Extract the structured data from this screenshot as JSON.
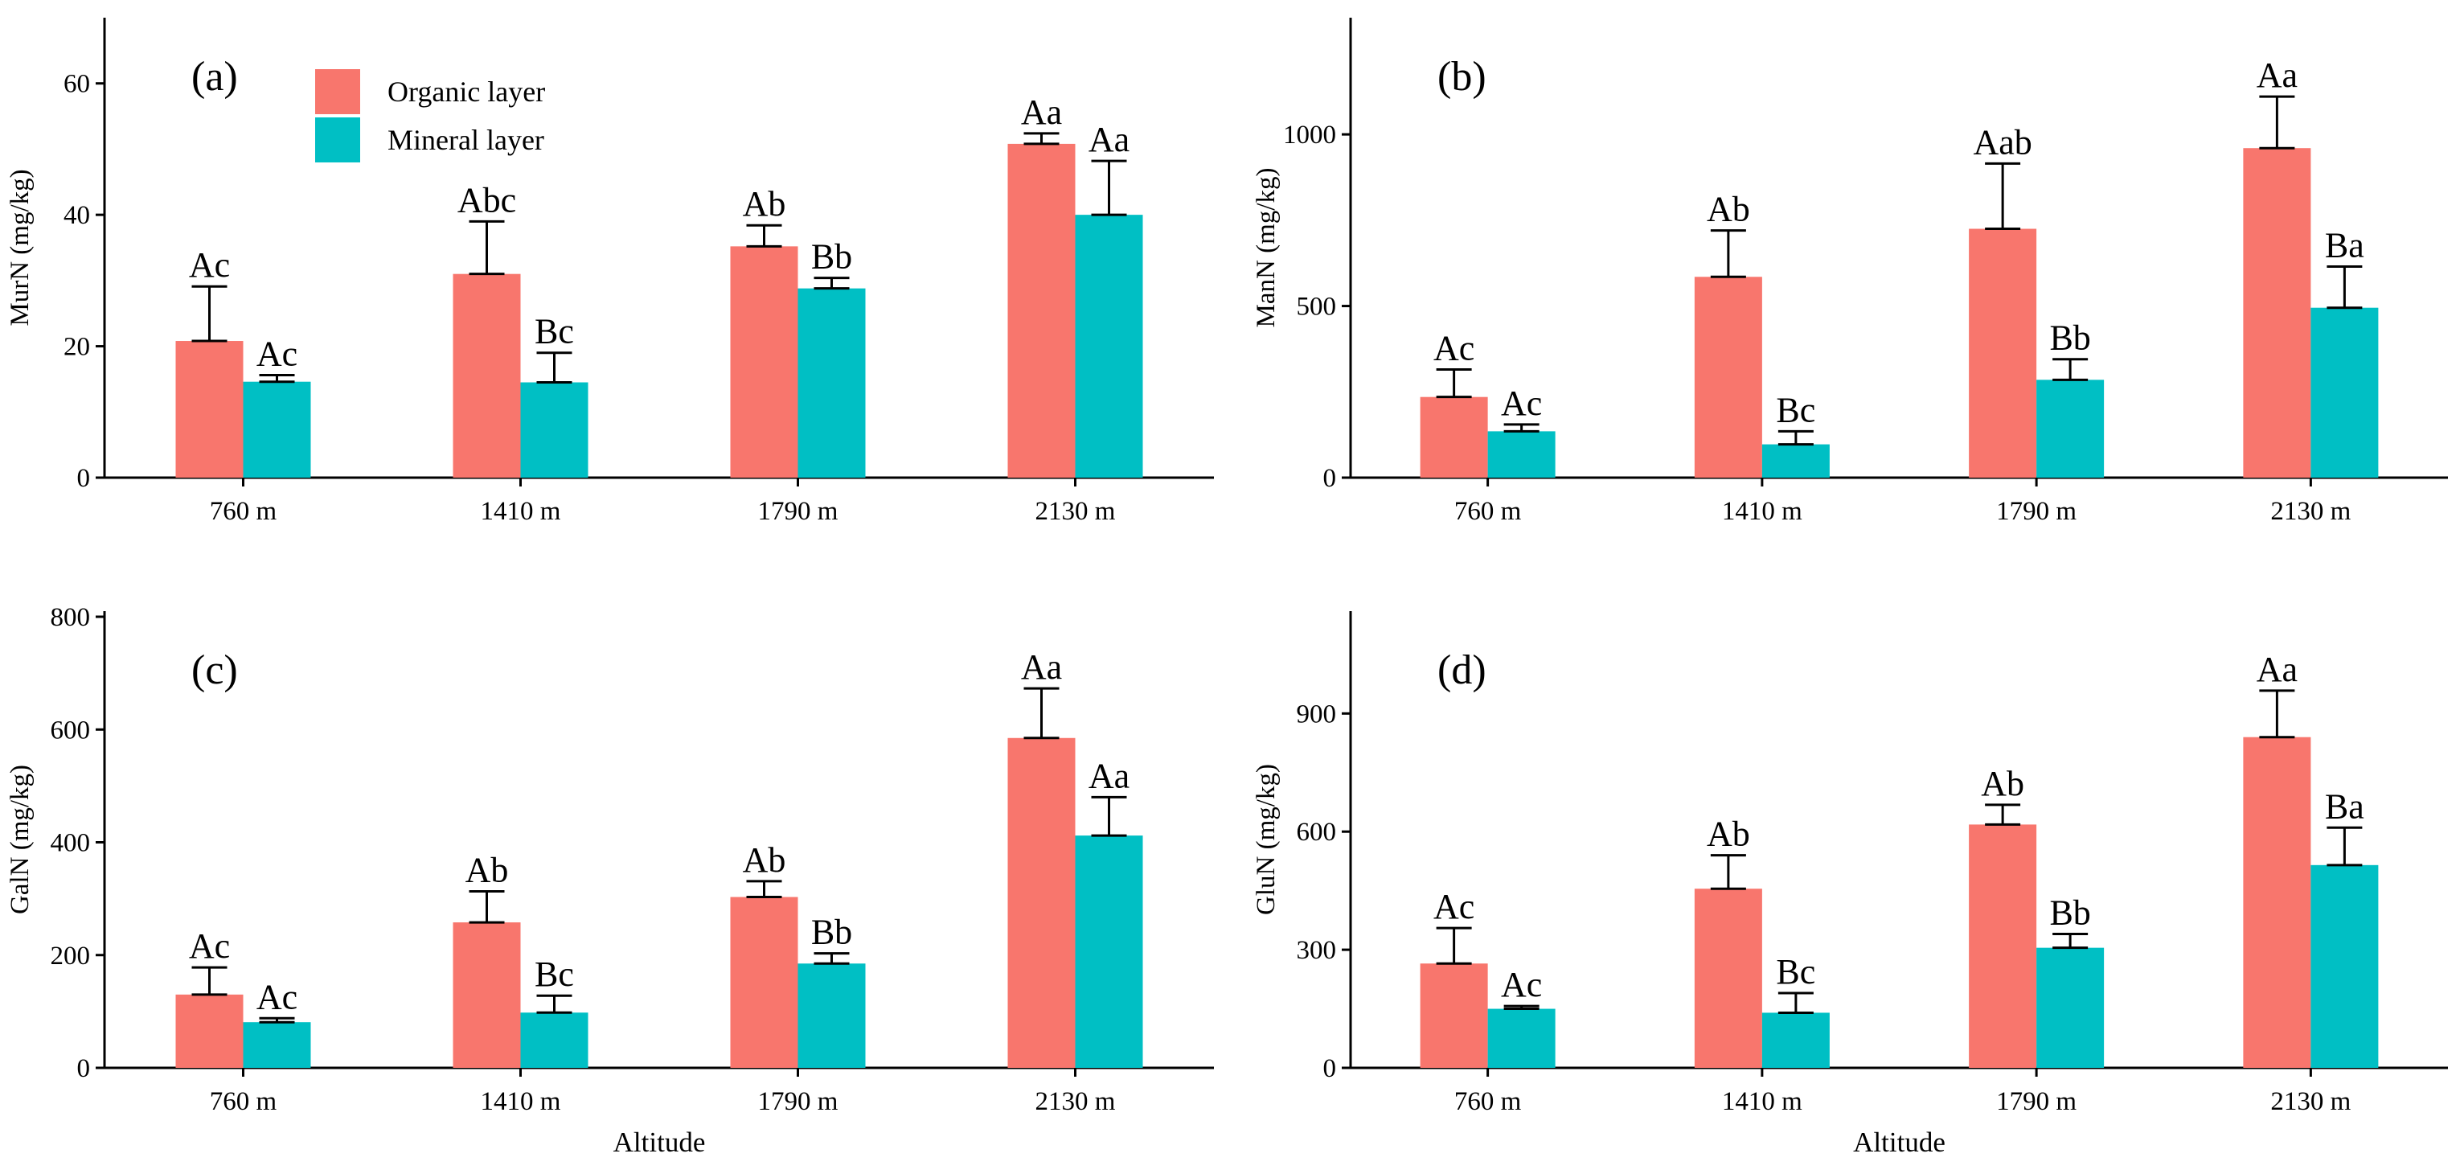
{
  "legend": {
    "items": [
      {
        "label": "Organic layer",
        "color": "#F8766D"
      },
      {
        "label": "Mineral layer",
        "color": "#00BFC4"
      }
    ]
  },
  "colors": {
    "organic": "#F8766D",
    "mineral": "#00BFC4",
    "axis": "#000000"
  },
  "chart_data": [
    {
      "type": "bar",
      "panel": "(a)",
      "ylabel": "MurN (mg/kg)",
      "xlabel": "",
      "ylim": [
        0,
        70
      ],
      "yticks": [
        0,
        20,
        40,
        60
      ],
      "categories": [
        "760 m",
        "1410 m",
        "1790 m",
        "2130 m"
      ],
      "series": [
        {
          "name": "Organic layer",
          "values": [
            20.8,
            31.0,
            35.2,
            50.8
          ],
          "errors": [
            8.3,
            8.0,
            3.2,
            1.6
          ],
          "labels": [
            "Ac",
            "Abc",
            "Ab",
            "Aa"
          ]
        },
        {
          "name": "Mineral layer",
          "values": [
            14.6,
            14.5,
            28.8,
            40.0
          ],
          "errors": [
            1.0,
            4.5,
            1.6,
            8.2
          ],
          "labels": [
            "Ac",
            "Bc",
            "Bb",
            "Aa"
          ]
        }
      ]
    },
    {
      "type": "bar",
      "panel": "(b)",
      "ylabel": "ManN (mg/kg)",
      "xlabel": "",
      "ylim": [
        0,
        1340
      ],
      "yticks": [
        0,
        500,
        1000
      ],
      "categories": [
        "760 m",
        "1410 m",
        "1790 m",
        "2130 m"
      ],
      "series": [
        {
          "name": "Organic layer",
          "values": [
            235,
            585,
            725,
            960
          ],
          "errors": [
            80,
            135,
            190,
            150
          ],
          "labels": [
            "Ac",
            "Ab",
            "Aab",
            "Aa"
          ]
        },
        {
          "name": "Mineral layer",
          "values": [
            135,
            97,
            285,
            495
          ],
          "errors": [
            20,
            38,
            60,
            120
          ],
          "labels": [
            "Ac",
            "Bc",
            "Bb",
            "Ba"
          ]
        }
      ]
    },
    {
      "type": "bar",
      "panel": "(c)",
      "ylabel": "GalN (mg/kg)",
      "xlabel": "Altitude",
      "ylim": [
        0,
        810
      ],
      "yticks": [
        0,
        200,
        400,
        600,
        800
      ],
      "categories": [
        "760 m",
        "1410 m",
        "1790 m",
        "2130 m"
      ],
      "series": [
        {
          "name": "Organic layer",
          "values": [
            130,
            258,
            303,
            585
          ],
          "errors": [
            48,
            55,
            28,
            88
          ],
          "labels": [
            "Ac",
            "Ab",
            "Ab",
            "Aa"
          ]
        },
        {
          "name": "Mineral layer",
          "values": [
            81,
            98,
            185,
            412
          ],
          "errors": [
            7,
            30,
            18,
            68
          ],
          "labels": [
            "Ac",
            "Bc",
            "Bb",
            "Aa"
          ]
        }
      ]
    },
    {
      "type": "bar",
      "panel": "(d)",
      "ylabel": "GluN (mg/kg)",
      "xlabel": "Altitude",
      "ylim": [
        0,
        1160
      ],
      "yticks": [
        0,
        300,
        600,
        900
      ],
      "categories": [
        "760 m",
        "1410 m",
        "1790 m",
        "2130 m"
      ],
      "series": [
        {
          "name": "Organic layer",
          "values": [
            265,
            455,
            618,
            840
          ],
          "errors": [
            90,
            85,
            50,
            118
          ],
          "labels": [
            "Ac",
            "Ab",
            "Ab",
            "Aa"
          ]
        },
        {
          "name": "Mineral layer",
          "values": [
            150,
            140,
            305,
            515
          ],
          "errors": [
            7,
            50,
            35,
            95
          ],
          "labels": [
            "Ac",
            "Bc",
            "Bb",
            "Ba"
          ]
        }
      ]
    }
  ]
}
